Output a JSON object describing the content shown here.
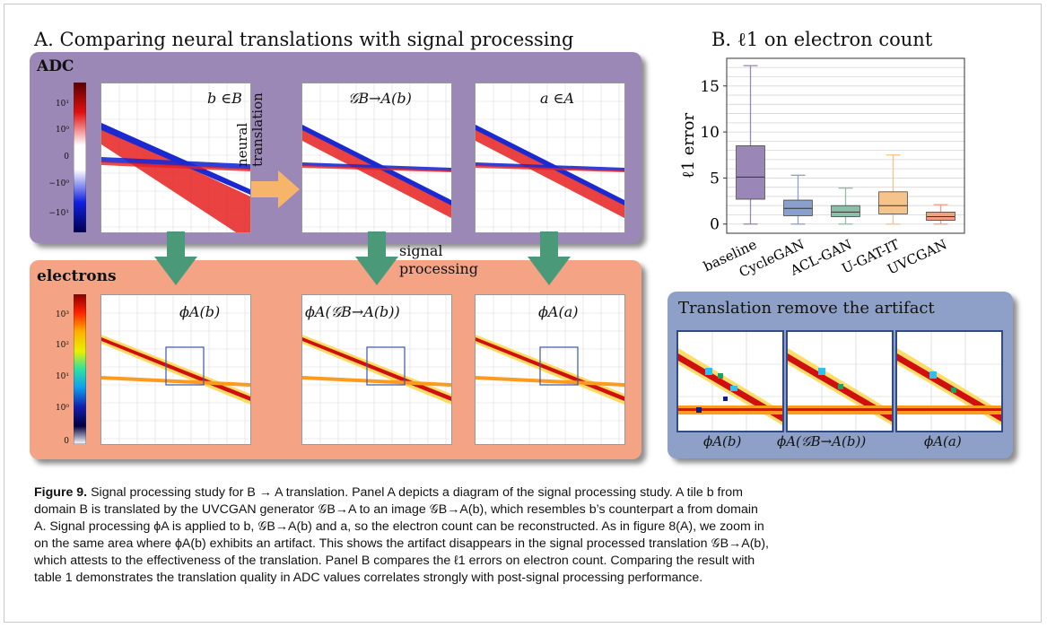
{
  "panel_a": {
    "title": "A. Comparing neural translations with signal processing",
    "adc_label": "ADC",
    "electrons_label": "electrons",
    "neural_translation": [
      "neural",
      "translation"
    ],
    "signal_processing": [
      "signal",
      "processing"
    ],
    "adc_tiles": [
      "b ∈B",
      "𝒢B→A(b)",
      "a ∈A"
    ],
    "electron_tiles": [
      "ϕA(b)",
      "ϕA(𝒢B→A(b))",
      "ϕA(a)"
    ],
    "adc_colorbar_ticks": [
      "10¹",
      "10⁰",
      "0",
      "−10⁰",
      "−10¹"
    ],
    "electron_colorbar_ticks": [
      "10³",
      "10²",
      "10¹",
      "10⁰",
      "0"
    ],
    "colors": {
      "adc_box": "#9b88b6",
      "electron_box": "#f4a484",
      "arrow_orange": "#f7b56b",
      "arrow_green": "#4a9a7a"
    }
  },
  "panel_b": {
    "title": "B. ℓ1 on electron count"
  },
  "chart_data": {
    "type": "box",
    "title": "B. ℓ1 on electron count",
    "xlabel": "",
    "ylabel": "ℓ1 error",
    "ylim": [
      -1,
      18
    ],
    "yticks": [
      0,
      5,
      10,
      15
    ],
    "grid": true,
    "categories": [
      "baseline",
      "CycleGAN",
      "ACL-GAN",
      "U-GAT-IT",
      "UVCGAN"
    ],
    "series": [
      {
        "name": "baseline",
        "color": "#9b86b8",
        "min": 0,
        "q1": 2.7,
        "median": 5.1,
        "q3": 8.5,
        "max": 17.2
      },
      {
        "name": "CycleGAN",
        "color": "#8aa0cc",
        "min": 0,
        "q1": 0.9,
        "median": 1.7,
        "q3": 2.6,
        "max": 5.3
      },
      {
        "name": "ACL-GAN",
        "color": "#8cbfa8",
        "min": 0,
        "q1": 0.8,
        "median": 1.3,
        "q3": 2.0,
        "max": 3.9
      },
      {
        "name": "U-GAT-IT",
        "color": "#f6c38a",
        "min": 0,
        "q1": 1.1,
        "median": 2.0,
        "q3": 3.5,
        "max": 7.5
      },
      {
        "name": "UVCGAN",
        "color": "#f1a083",
        "min": 0,
        "q1": 0.4,
        "median": 0.8,
        "q3": 1.3,
        "max": 2.1
      }
    ]
  },
  "zoom": {
    "title": "Translation remove the artifact",
    "labels": [
      "ϕA(b)",
      "ϕA(𝒢B→A(b))",
      "ϕA(a)"
    ]
  },
  "caption": {
    "figure_label": "Figure 9.",
    "line1": " Signal processing study for B → A translation. Panel A depicts a diagram of the signal processing study. A tile b from",
    "line2": "domain B is translated by the UVCGAN generator 𝒢B→A to an image 𝒢B→A(b), which resembles b’s counterpart a from domain",
    "line3": "A. Signal processing ϕA is applied to b, 𝒢B→A(b) and a, so the electron count can be reconstructed. As in figure 8(A), we zoom in",
    "line4": "on the same area where ϕA(b) exhibits an artifact. This shows the artifact disappears in the signal processed translation 𝒢B→A(b),",
    "line5": "which attests to the effectiveness of the translation. Panel B compares the ℓ1 errors on electron count. Comparing the result with",
    "line6": "table 1 demonstrates the translation quality in ADC values correlates strongly with post-signal processing performance."
  }
}
